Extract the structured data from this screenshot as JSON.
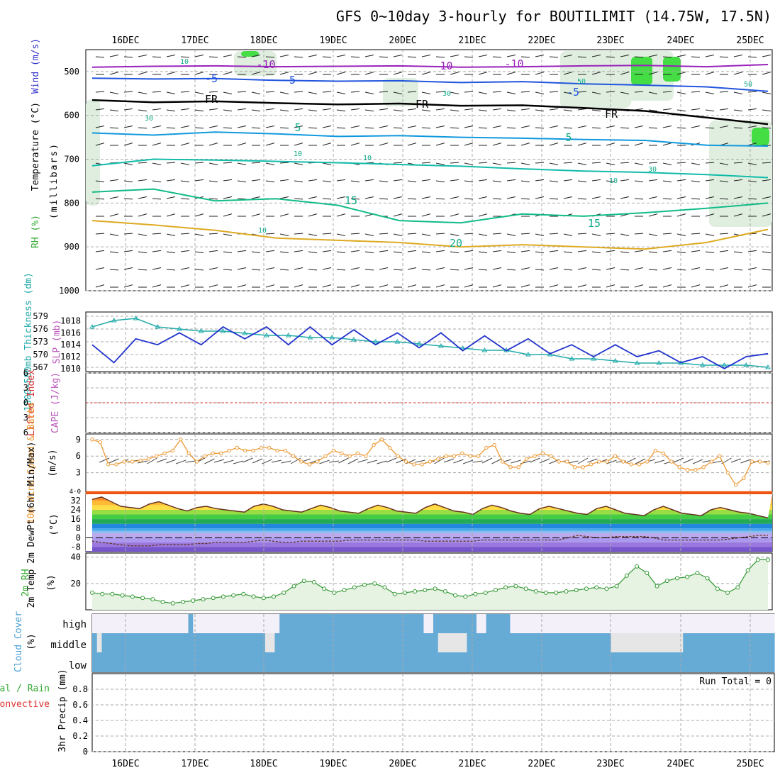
{
  "title": "GFS 0~10day 3-hourly for BOUTILIMIT (14.75W, 17.5N)",
  "dates": [
    "16DEC",
    "17DEC",
    "18DEC",
    "19DEC",
    "20DEC",
    "21DEC",
    "22DEC",
    "23DEC",
    "24DEC",
    "25DEC"
  ],
  "colors": {
    "green": "#33aa33",
    "temp": "#dd3333",
    "wind": "#3333cc",
    "rh_bar": "#33cc33",
    "thickness": "#22aaaa",
    "slp": "#2233cc",
    "li": "#dd3333",
    "cape": "#bb55bb",
    "speed": "#ee9933",
    "rh2m": "#33aa33",
    "cloud": "#66aad6",
    "precip_total": "#33aa33",
    "precip_conv": "#dd3333"
  },
  "chart_data": [
    {
      "type": "contour",
      "panel": "upper-air",
      "ylabel_parts": [
        "RH (%)",
        "Temperature (°C)",
        "Wind (m/s)"
      ],
      "ylabel2": "(millibars)",
      "yticks": [
        500,
        600,
        700,
        800,
        900,
        1000
      ],
      "ylim": [
        450,
        1000
      ],
      "contour_labels": [
        "-10",
        "-10",
        "-5",
        "-5",
        "-5",
        "FR",
        "FR",
        "FR",
        "5",
        "5",
        "-10",
        "10",
        "15",
        "15",
        "20",
        "10",
        "10",
        "10",
        "30",
        "30",
        "50",
        "50",
        "10",
        "30"
      ],
      "isotherms": [
        {
          "label": "-10",
          "color": "#9922bb",
          "p": [
            490,
            488,
            487,
            489,
            488,
            487,
            490,
            489,
            487,
            486,
            489,
            484
          ]
        },
        {
          "label": "-5",
          "color": "#2255dd",
          "p": [
            515,
            517,
            516,
            520,
            522,
            521,
            525,
            523,
            528,
            531,
            535,
            545
          ]
        },
        {
          "label": "FR",
          "color": "#000000",
          "p": [
            565,
            570,
            568,
            572,
            575,
            573,
            578,
            577,
            583,
            590,
            605,
            620
          ]
        },
        {
          "label": "5",
          "color": "#1199dd",
          "p": [
            640,
            645,
            638,
            642,
            648,
            646,
            650,
            652,
            655,
            657,
            668,
            670
          ]
        },
        {
          "label": "10",
          "color": "#11bbaa",
          "p": [
            715,
            700,
            702,
            705,
            708,
            712,
            716,
            722,
            727,
            730,
            735,
            742
          ]
        },
        {
          "label": "15",
          "color": "#11bb88",
          "p": [
            775,
            768,
            795,
            790,
            805,
            840,
            845,
            825,
            830,
            822,
            812,
            800
          ]
        },
        {
          "label": "20",
          "color": "#ddaa22",
          "p": [
            840,
            850,
            862,
            880,
            885,
            890,
            900,
            895,
            900,
            905,
            890,
            860
          ]
        }
      ]
    },
    {
      "type": "line",
      "panel": "slp-thickness",
      "ylabel": "1000~500mb Thickness (dm)",
      "ylabel2": "SLP (mb)",
      "left_ticks": [
        567,
        570,
        573,
        576,
        579
      ],
      "right_ticks": [
        1010,
        1012,
        1014,
        1016,
        1018
      ],
      "series": [
        {
          "name": "1000-500mb thickness (dm)",
          "axis": "left",
          "values": [
            576.5,
            578,
            578.5,
            576.5,
            576,
            575.5,
            575.5,
            575,
            574.5,
            574.5,
            574,
            574,
            573.5,
            573,
            573,
            572.5,
            572,
            571.5,
            571,
            571,
            570,
            570,
            569,
            569,
            568.5,
            568,
            568,
            568,
            567.5,
            567.5,
            567.5,
            567
          ]
        },
        {
          "name": "SLP (mb)",
          "axis": "right",
          "values": [
            1014,
            1011,
            1015,
            1014,
            1016,
            1014,
            1017,
            1015,
            1017,
            1014,
            1017,
            1014,
            1016.5,
            1014,
            1016,
            1013.5,
            1016,
            1013,
            1015.5,
            1013,
            1015,
            1012.5,
            1014,
            1012,
            1014,
            1012,
            1013,
            1011,
            1012,
            1010,
            1012,
            1012.5
          ]
        }
      ]
    },
    {
      "type": "line",
      "panel": "stability",
      "ylabel": "Lifted Index",
      "ylabel2": "CAPE (J/kg)",
      "yticks": [
        -6,
        -3,
        0,
        3,
        6
      ],
      "reference_line": 0,
      "series": []
    },
    {
      "type": "line",
      "panel": "10m-wind",
      "ylabel": "10m Wind Speed & Barbs",
      "ylabel2": "(m/s)",
      "yticks": [
        3,
        6,
        9
      ],
      "ylim": [
        0,
        10
      ],
      "series": [
        {
          "name": "10m wind speed (m/s)",
          "values": [
            9,
            8.5,
            4.5,
            4.5,
            5,
            5,
            5.2,
            5.5,
            6,
            6.5,
            7,
            9,
            6.5,
            5,
            6,
            6.5,
            6.5,
            7,
            7.5,
            7,
            7,
            7.5,
            7.5,
            7,
            7,
            6,
            5,
            4.5,
            5,
            6,
            7,
            6.5,
            6,
            6.5,
            6,
            8,
            9,
            7.5,
            6,
            5,
            4.5,
            4.5,
            5,
            5.5,
            6,
            6,
            6.5,
            6,
            6,
            7.5,
            8,
            5,
            4,
            4,
            5.5,
            6,
            6.5,
            6,
            5,
            5,
            4,
            4,
            4.5,
            5,
            5,
            6,
            5,
            4.5,
            4.5,
            5,
            7,
            6.5,
            5,
            4,
            3.5,
            3.5,
            4,
            5,
            6,
            3,
            0.8,
            2,
            5,
            5,
            4.8
          ]
        }
      ]
    },
    {
      "type": "area",
      "panel": "2m-temp",
      "ylabel": "2m Temp 2m DewPt (6hr Min/Max)",
      "ylabel2": "(°C)",
      "yticks": [
        -8,
        0,
        8,
        16,
        24,
        32
      ],
      "ylim": [
        -12,
        38
      ],
      "series": [
        {
          "name": "2m temperature (°C)",
          "values": [
            33,
            35,
            31,
            27,
            26,
            25,
            29,
            31,
            28,
            25,
            23,
            26,
            27,
            25,
            24,
            23,
            22,
            27,
            29,
            27,
            24,
            23,
            22,
            25,
            28,
            26,
            23,
            22,
            21,
            25,
            28,
            26,
            23,
            22,
            21,
            26,
            29,
            26,
            23,
            22,
            20,
            25,
            28,
            26,
            23,
            21,
            20,
            25,
            27,
            25,
            23,
            21,
            20,
            25,
            27,
            24,
            21,
            20,
            19,
            24,
            27,
            24,
            21,
            20,
            19,
            24,
            26,
            24,
            22,
            21,
            19,
            17
          ]
        },
        {
          "name": "2m dew point (°C)",
          "values": [
            -3,
            -4,
            -5,
            -6,
            -7,
            -7,
            -7,
            -6,
            -6,
            -6,
            -6,
            -5,
            -5,
            -4,
            -4,
            -4,
            -4,
            -3,
            -2,
            -3,
            -4,
            -4,
            -3,
            -3,
            -3,
            -3,
            -3,
            -2,
            -2,
            -2,
            -2,
            -2,
            -2,
            -2,
            -2,
            -3,
            -3,
            -3,
            -3,
            -3,
            -3,
            -2,
            -2,
            -2,
            -2,
            -2,
            -2,
            -2,
            -2,
            -2,
            0,
            2,
            1,
            0,
            0,
            1,
            1,
            1,
            1,
            0,
            -2,
            -2,
            -2,
            -2,
            -2,
            -2,
            -2,
            -1,
            0,
            1,
            2,
            2
          ]
        }
      ]
    },
    {
      "type": "area",
      "panel": "2m-rh",
      "ylabel": "2m RH",
      "ylabel2": "(%)",
      "yticks": [
        20,
        40
      ],
      "ylim": [
        0,
        42
      ],
      "series": [
        {
          "name": "2m relative humidity (%)",
          "values": [
            13,
            12,
            12,
            11,
            10,
            9,
            8,
            6,
            5,
            6,
            7,
            8,
            9,
            10,
            11,
            12,
            10,
            9,
            10,
            13,
            18,
            22,
            21,
            16,
            13,
            15,
            17,
            19,
            20,
            17,
            12,
            13,
            14,
            15,
            16,
            14,
            11,
            10,
            12,
            13,
            15,
            17,
            18,
            16,
            14,
            13,
            13,
            14,
            15,
            16,
            17,
            16,
            18,
            26,
            33,
            28,
            18,
            22,
            24,
            25,
            28,
            24,
            16,
            13,
            17,
            30,
            38,
            38
          ]
        }
      ]
    },
    {
      "type": "heatmap",
      "panel": "cloud-cover",
      "ylabel": "Cloud Cover",
      "ylabel2": "(%)",
      "rows": [
        "high",
        "middle",
        "low"
      ],
      "levels": [
        {
          "name": "high",
          "values": [
            0,
            0,
            0,
            0,
            0,
            0,
            0,
            0,
            0,
            0,
            0,
            0,
            0,
            0,
            0,
            0,
            0,
            0,
            0,
            0,
            100,
            0,
            0,
            0,
            0,
            0,
            0,
            0,
            0,
            0,
            0,
            0,
            0,
            0,
            0,
            0,
            0,
            0,
            40,
            100,
            100,
            100,
            100,
            100,
            100,
            100,
            100,
            100,
            100,
            100,
            100,
            100,
            100,
            100,
            100,
            100,
            100,
            100,
            100,
            100,
            100,
            100,
            100,
            100,
            100,
            100,
            100,
            100,
            100,
            0,
            0,
            100,
            100,
            100,
            100,
            100,
            100,
            100,
            100,
            100,
            0,
            0,
            100,
            100,
            100,
            100,
            100,
            0,
            0,
            0,
            0,
            0,
            0,
            0,
            0,
            0,
            0,
            0,
            0,
            0,
            0,
            0,
            0,
            0,
            0,
            0,
            0,
            0,
            0,
            0,
            0,
            0,
            0,
            0,
            0,
            0,
            0,
            0,
            0,
            0,
            0,
            0,
            0,
            0,
            0,
            0,
            0,
            0,
            0,
            0,
            0,
            0,
            0,
            0,
            0,
            0,
            0,
            0,
            0,
            0,
            0,
            0
          ]
        },
        {
          "name": "middle",
          "values": [
            100,
            0,
            100,
            100,
            100,
            100,
            100,
            100,
            100,
            100,
            100,
            100,
            100,
            100,
            100,
            100,
            100,
            100,
            100,
            100,
            100,
            100,
            100,
            100,
            100,
            100,
            100,
            100,
            100,
            100,
            100,
            100,
            100,
            100,
            100,
            100,
            0,
            0,
            100,
            100,
            100,
            100,
            100,
            100,
            100,
            100,
            100,
            100,
            100,
            100,
            100,
            100,
            100,
            100,
            100,
            100,
            100,
            100,
            100,
            100,
            100,
            100,
            100,
            100,
            100,
            100,
            100,
            100,
            100,
            100,
            100,
            100,
            0,
            0,
            0,
            0,
            0,
            0,
            100,
            100,
            100,
            100,
            100,
            100,
            100,
            100,
            100,
            100,
            100,
            100,
            100,
            100,
            100,
            100,
            100,
            100,
            100,
            100,
            100,
            100,
            100,
            100,
            100,
            100,
            100,
            100,
            100,
            100,
            0,
            0,
            0,
            0,
            0,
            0,
            0,
            0,
            0,
            0,
            0,
            0,
            0,
            0,
            0,
            100,
            100,
            100,
            100,
            100,
            100,
            100,
            100,
            100,
            100,
            100,
            100,
            100,
            100,
            100,
            100,
            100,
            100,
            100
          ]
        },
        {
          "name": "low",
          "values": [
            100,
            100,
            100,
            100,
            100,
            100,
            100,
            100,
            100,
            100,
            100,
            100,
            100,
            100,
            100,
            100,
            100,
            100,
            100,
            100,
            100,
            100,
            100,
            100,
            100,
            100,
            100,
            100,
            100,
            100,
            100,
            100,
            100,
            100,
            100,
            100,
            100,
            100,
            100,
            100,
            100,
            100,
            100,
            100,
            100,
            100,
            100,
            100,
            100,
            100,
            100,
            100,
            100,
            100,
            100,
            100,
            100,
            100,
            100,
            100,
            100,
            100,
            100,
            100,
            100,
            100,
            100,
            100,
            100,
            100,
            100,
            100,
            100,
            100,
            100,
            100,
            100,
            100,
            100,
            100,
            100,
            100,
            100,
            100,
            100,
            100,
            100,
            100,
            100,
            100,
            100,
            100,
            100,
            100,
            100,
            100,
            100,
            100,
            100,
            100,
            100,
            100,
            100,
            100,
            100,
            100,
            100,
            100,
            100,
            100,
            100,
            100,
            100,
            100,
            100,
            100,
            100,
            100,
            100,
            100,
            100,
            100,
            100,
            100,
            100,
            100,
            100,
            100,
            100,
            100,
            100,
            100,
            100,
            100,
            100,
            100,
            100,
            100,
            100,
            100,
            100,
            100,
            100,
            100,
            100
          ]
        }
      ]
    },
    {
      "type": "bar",
      "panel": "precip",
      "ylabel_parts": [
        "Total / Rain",
        "Convective"
      ],
      "ylabel2": "3hr Precip (mm)",
      "yticks": [
        0,
        0.2,
        0.4,
        0.6,
        0.8
      ],
      "ylim": [
        0,
        1
      ],
      "annotation": "Run Total = 0",
      "series": [
        {
          "name": "Total / Rain",
          "values": []
        },
        {
          "name": "Convective",
          "values": []
        }
      ]
    }
  ]
}
